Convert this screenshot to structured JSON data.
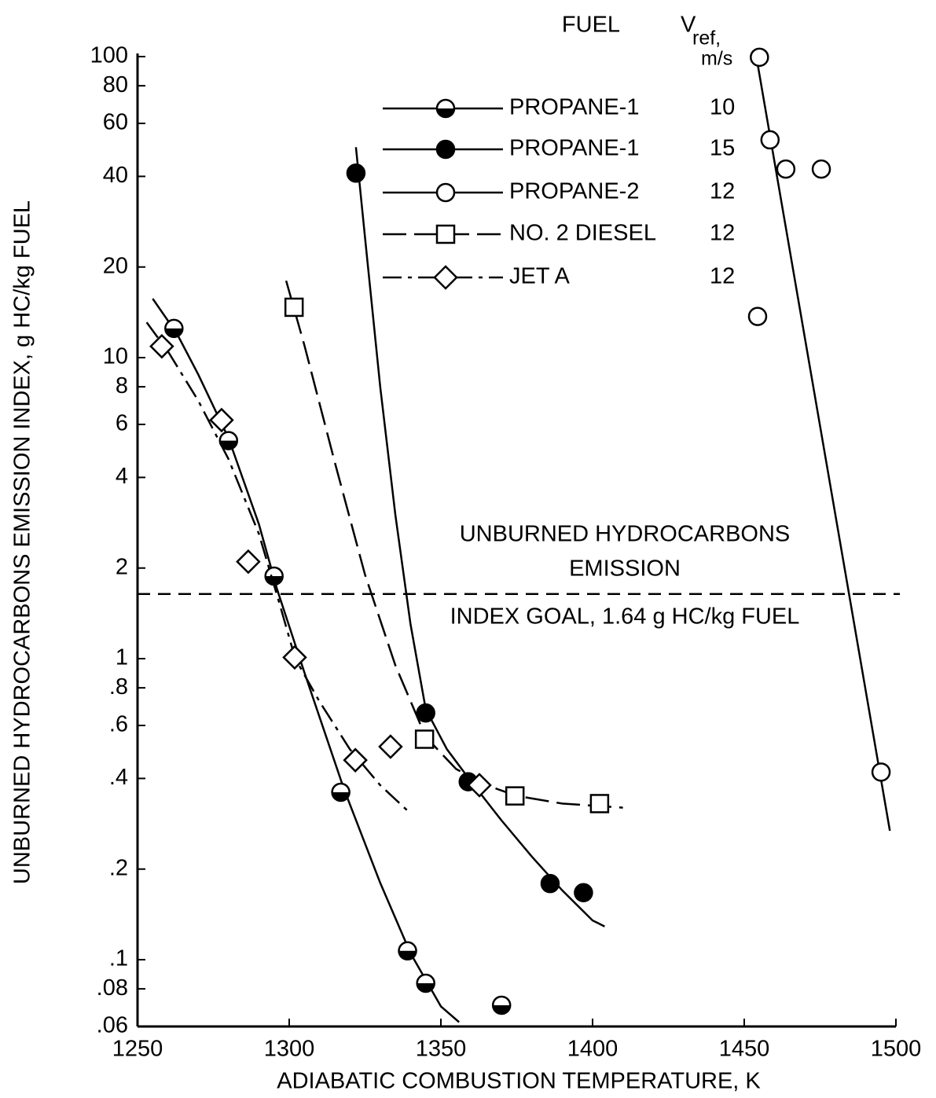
{
  "chart_data": {
    "type": "scatter",
    "x_label": "ADIABATIC COMBUSTION TEMPERATURE, K",
    "y_label": "UNBURNED HYDROCARBONS EMISSION INDEX, g HC/kg FUEL",
    "xlim": [
      1250,
      1500
    ],
    "xticks": [
      1250,
      1300,
      1350,
      1400,
      1450,
      1500
    ],
    "ylim": [
      0.06,
      100
    ],
    "log_y": true,
    "yticks": [
      100,
      80,
      60,
      40,
      20,
      10,
      8,
      6,
      4,
      2,
      1,
      {
        "value": 0.8,
        "label": ".8"
      },
      {
        "value": 0.6,
        "label": ".6"
      },
      {
        "value": 0.4,
        "label": ".4"
      },
      {
        "value": 0.2,
        "label": ".2"
      },
      {
        "value": 0.1,
        "label": ".1"
      },
      {
        "value": 0.08,
        "label": ".08"
      },
      {
        "value": 0.06,
        "label": ".06"
      }
    ],
    "legend_header": {
      "fuel": "FUEL",
      "vref_symbol": "V",
      "vref_subscript": "ref,",
      "vref_unit": "m/s"
    },
    "goal_line": 1.64,
    "annotations": [
      "UNBURNED HYDROCARBONS",
      "EMISSION",
      "INDEX GOAL, 1.64 g HC/kg FUEL"
    ],
    "series": [
      {
        "name": "PROPANE-1",
        "vref": 10,
        "color": "#000000",
        "marker": "half",
        "line_style": "solid",
        "x": [
          1262,
          1280,
          1295,
          1317,
          1339,
          1345,
          1370
        ],
        "values": [
          12.5,
          5.3,
          1.88,
          0.36,
          0.107,
          0.0835,
          0.0706
        ],
        "fit_x": [
          1255,
          1263,
          1270,
          1280,
          1290,
          1296,
          1305,
          1318,
          1330,
          1340,
          1350,
          1356
        ],
        "fit_values": [
          15.7,
          12,
          8.8,
          5.4,
          2.8,
          1.7,
          0.9,
          0.37,
          0.18,
          0.105,
          0.07,
          0.062
        ]
      },
      {
        "name": "PROPANE-1",
        "vref": 15,
        "color": "#000000",
        "marker": "filled",
        "line_style": "solid",
        "x": [
          1322,
          1345,
          1359,
          1386,
          1397
        ],
        "values": [
          41,
          0.66,
          0.39,
          0.179,
          0.167
        ],
        "fit_x": [
          1322,
          1325,
          1330,
          1335,
          1340,
          1345,
          1352,
          1360,
          1370,
          1380,
          1390,
          1400,
          1404
        ],
        "fit_values": [
          50,
          25,
          8,
          3,
          1.3,
          0.68,
          0.5,
          0.39,
          0.29,
          0.22,
          0.17,
          0.135,
          0.129
        ]
      },
      {
        "name": "PROPANE-2",
        "vref": 12,
        "color": "#000000",
        "marker": "open",
        "line_style": "solid",
        "x": [
          1455,
          1458.5,
          1463.7,
          1475.4,
          1454.4,
          1495.1
        ],
        "values": [
          99.5,
          52.9,
          42.3,
          42.3,
          13.7,
          0.42
        ],
        "fit_x": [
          1454,
          1498
        ],
        "fit_values": [
          100,
          0.268
        ]
      },
      {
        "name": "NO. 2 DIESEL",
        "vref": 12,
        "color": "#000000",
        "marker": "square",
        "line_style": "dash",
        "x": [
          1301.6,
          1344.6,
          1374.4,
          1402.3
        ],
        "values": [
          14.7,
          0.54,
          0.35,
          0.33
        ],
        "fit_x": [
          1299,
          1305,
          1315,
          1325,
          1335,
          1345,
          1355,
          1365,
          1375,
          1390,
          1410
        ],
        "fit_values": [
          18,
          11,
          4.5,
          1.9,
          0.95,
          0.55,
          0.43,
          0.38,
          0.35,
          0.33,
          0.32
        ]
      },
      {
        "name": "JET A",
        "vref": 12,
        "color": "#000000",
        "marker": "diamond",
        "line_style": "dashdot",
        "x": [
          1258,
          1277.7,
          1286.5,
          1301.8,
          1321.8,
          1333.4,
          1362.7
        ],
        "values": [
          10.9,
          6.2,
          2.1,
          1.01,
          0.46,
          0.51,
          0.38
        ],
        "fit_x": [
          1253,
          1260,
          1270,
          1280,
          1290,
          1297,
          1302,
          1310,
          1320,
          1330,
          1340
        ],
        "fit_values": [
          13.1,
          10.5,
          7.2,
          4.6,
          2.6,
          1.5,
          1.0,
          0.72,
          0.5,
          0.38,
          0.306
        ]
      }
    ]
  }
}
